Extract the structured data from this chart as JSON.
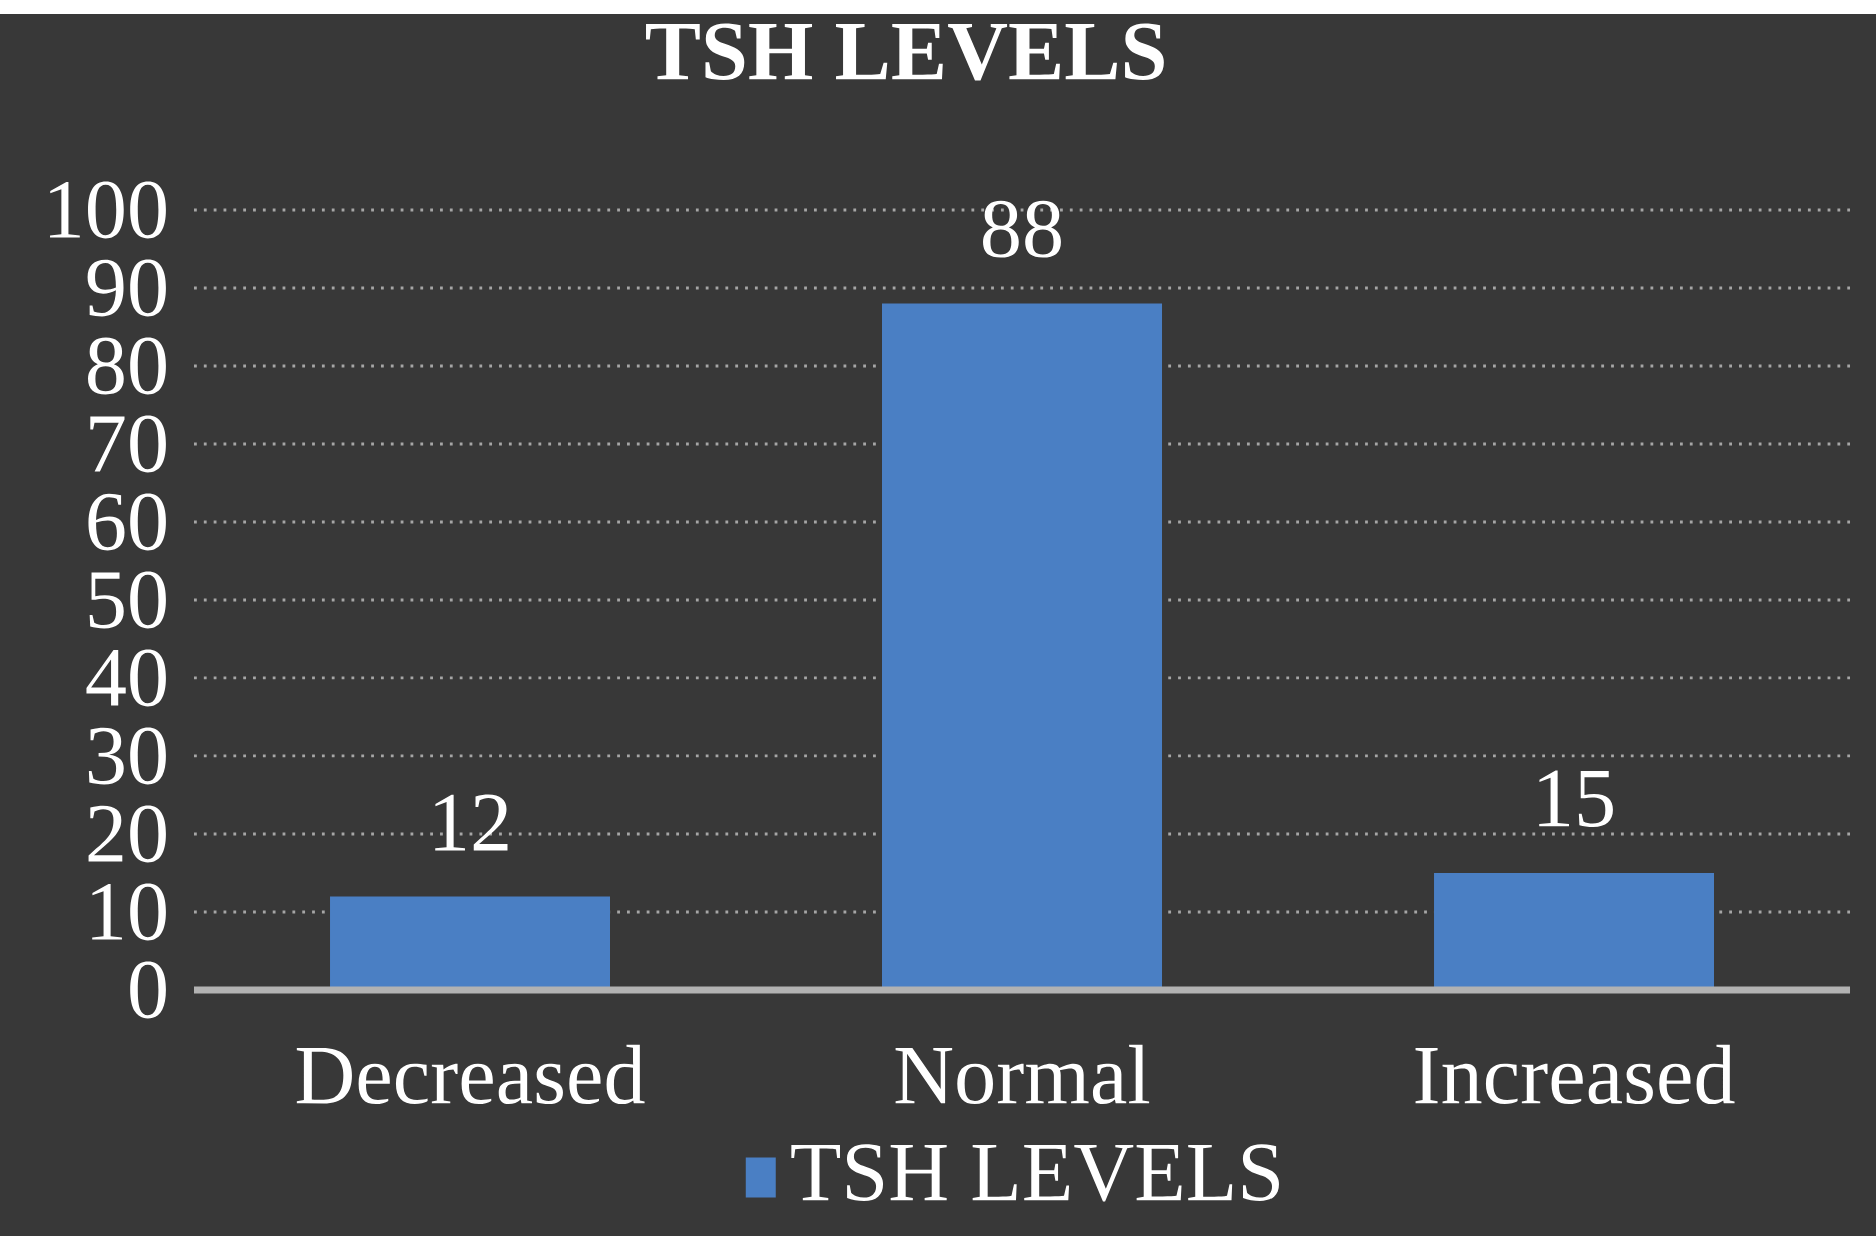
{
  "chart_data": {
    "type": "bar",
    "title": "TSH LEVELS",
    "categories": [
      "Decreased",
      "Normal",
      "Increased"
    ],
    "series": [
      {
        "name": "TSH LEVELS",
        "color": "#4a7fc4",
        "values": [
          12,
          88,
          15
        ]
      }
    ],
    "ylim": [
      0,
      100
    ],
    "yticks": [
      0,
      10,
      20,
      30,
      40,
      50,
      60,
      70,
      80,
      90,
      100
    ],
    "grid": "y",
    "legend": "bottom",
    "data_labels": true
  }
}
